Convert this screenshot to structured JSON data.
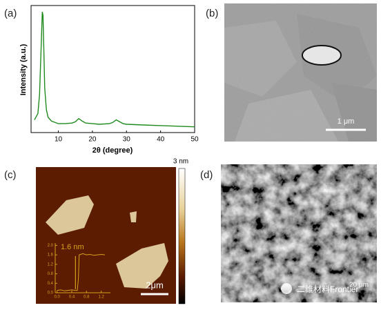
{
  "chart_data": [
    {
      "type": "line",
      "panel_label": "(a)",
      "x_label": "2θ (degree)",
      "y_label": "Intensity (a.u.)",
      "color": "#1e8a1e",
      "x": [
        3,
        4,
        4.5,
        5,
        5.3,
        5.5,
        5.7,
        6,
        6.5,
        7,
        8,
        10,
        12,
        14,
        15,
        16,
        17,
        18,
        20,
        22,
        25,
        26,
        27,
        28,
        29,
        30,
        35,
        40,
        45,
        50
      ],
      "values": [
        0.1,
        0.15,
        0.3,
        0.7,
        0.95,
        0.92,
        0.7,
        0.35,
        0.18,
        0.12,
        0.09,
        0.07,
        0.07,
        0.075,
        0.085,
        0.11,
        0.09,
        0.075,
        0.07,
        0.065,
        0.07,
        0.08,
        0.1,
        0.085,
        0.07,
        0.065,
        0.06,
        0.055,
        0.05,
        0.045
      ],
      "xlim": [
        2,
        50
      ],
      "ylim": [
        0,
        1
      ],
      "xticks": [
        10,
        20,
        30,
        40,
        50
      ]
    },
    {
      "type": "line",
      "annotation": "1.6 nm",
      "color": "#d9a21b",
      "x": [
        0,
        0.1,
        0.2,
        0.3,
        0.4,
        0.5,
        0.55,
        0.58,
        0.6,
        0.7,
        0.8,
        0.9,
        1.0,
        1.1,
        1.2,
        1.3
      ],
      "values": [
        0.1,
        0.12,
        0.08,
        0.1,
        0.12,
        0.1,
        0.1,
        0.6,
        1.6,
        1.65,
        1.6,
        1.62,
        1.58,
        1.6,
        1.62,
        1.6
      ],
      "xlim": [
        -0.05,
        1.45
      ],
      "ylim": [
        0,
        2.1
      ],
      "xticks": [
        {
          "value": 0,
          "label": "0.0"
        },
        0.4,
        0.8,
        1.2
      ],
      "yticks": [
        {
          "value": 0,
          "label": "0.0"
        },
        0.4,
        0.8,
        1.2,
        1.6,
        {
          "value": 2,
          "label": "2.0"
        }
      ]
    }
  ],
  "panels": {
    "b": {
      "label": "(b)",
      "scale_bar": "1 μm"
    },
    "c": {
      "label": "(c)",
      "scale_bar": "2μm",
      "colorbar_max": "3 nm"
    },
    "d": {
      "label": "(d)",
      "scale_bar": "20 μm",
      "watermark": "二维材料Frontier"
    }
  }
}
